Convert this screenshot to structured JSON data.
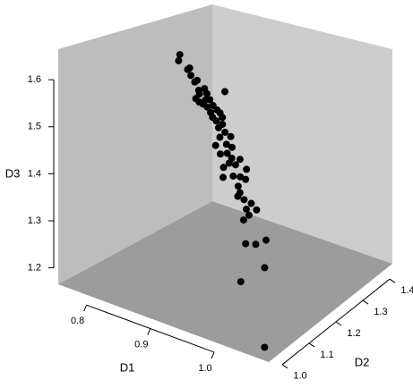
{
  "chart_data": {
    "type": "scatter3d",
    "xlabel": "D1",
    "ylabel": "D2",
    "zlabel": "D3",
    "xlim": [
      0.75,
      1.08
    ],
    "ylim": [
      0.97,
      1.43
    ],
    "zlim": [
      1.165,
      1.665
    ],
    "xticks": [
      0.8,
      0.9,
      {
        "value": 1,
        "label": "1.0"
      }
    ],
    "yticks": [
      {
        "value": 1,
        "label": "1.0"
      },
      1.1,
      1.2,
      1.3,
      1.4
    ],
    "zticks": [
      1.2,
      1.3,
      1.4,
      1.5,
      1.6
    ],
    "color": "#000000",
    "x": [
      0.816,
      0.821,
      0.826,
      0.83,
      0.824,
      0.835,
      0.833,
      0.84,
      0.838,
      0.843,
      0.841,
      0.847,
      0.846,
      0.849,
      0.848,
      0.85,
      0.851,
      0.852,
      0.853,
      0.855,
      0.856,
      0.859,
      0.858,
      0.861,
      0.863,
      0.866,
      0.869,
      0.873,
      0.872,
      0.878,
      0.879,
      0.88,
      0.884,
      0.887,
      0.886,
      0.887,
      0.891,
      0.892,
      0.894,
      0.895,
      0.9,
      0.9,
      0.902,
      0.907,
      0.903,
      0.912,
      0.916,
      0.915,
      0.919,
      0.923,
      0.923,
      0.927,
      0.931,
      0.837,
      0.944,
      0.947,
      0.947,
      0.998,
      1.014,
      1.073
    ],
    "y": [
      1.217,
      1.204,
      1.223,
      1.226,
      1.233,
      1.229,
      1.24,
      1.232,
      1.254,
      1.229,
      1.256,
      1.24,
      1.256,
      1.217,
      1.208,
      1.259,
      1.225,
      1.237,
      1.266,
      1.272,
      1.24,
      1.241,
      1.274,
      1.249,
      1.265,
      1.247,
      1.262,
      1.238,
      1.275,
      1.25,
      1.266,
      1.211,
      1.241,
      1.25,
      1.215,
      1.277,
      1.234,
      1.253,
      1.285,
      1.208,
      1.23,
      1.253,
      1.267,
      1.233,
      1.191,
      1.229,
      1.235,
      1.216,
      1.253,
      1.229,
      1.263,
      1.23,
      1.204,
      1.32,
      1.254,
      1.179,
      1.213,
      1.139,
      1.02,
      0.971
    ],
    "z": [
      1.62,
      1.611,
      1.588,
      1.575,
      1.588,
      1.561,
      1.561,
      1.543,
      1.54,
      1.537,
      1.529,
      1.521,
      1.517,
      1.524,
      1.534,
      1.504,
      1.518,
      1.508,
      1.493,
      1.485,
      1.496,
      1.486,
      1.475,
      1.476,
      1.464,
      1.463,
      1.449,
      1.447,
      1.436,
      1.429,
      1.417,
      1.44,
      1.414,
      1.401,
      1.422,
      1.389,
      1.397,
      1.387,
      1.366,
      1.398,
      1.373,
      1.363,
      1.353,
      1.352,
      1.385,
      1.341,
      1.325,
      1.339,
      1.311,
      1.309,
      1.294,
      1.297,
      1.298,
      1.513,
      1.239,
      1.263,
      1.248,
      1.25,
      1.274,
      1.19
    ]
  }
}
